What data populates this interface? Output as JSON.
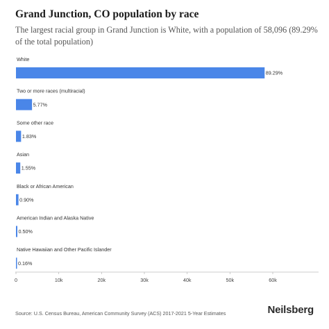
{
  "header": {
    "title": "Grand Junction, CO population by race",
    "subtitle": "The largest racial group in Grand Junction is White, with a population of 58,096 (89.29% of the total population)"
  },
  "footer": {
    "source": "Source: U.S. Census Bureau, American Community Survey (ACS) 2017-2021 5-Year Estimates",
    "brand": "Neilsberg"
  },
  "colors": {
    "bar": "#4a86e8",
    "axis": "#bdbdbd"
  },
  "chart_data": {
    "type": "bar",
    "orientation": "horizontal",
    "categories": [
      "White",
      "Two or more races (multiracial)",
      "Some other race",
      "Asian",
      "Black or African American",
      "American Indian and Alaska Native",
      "Native Hawaiian and Other Pacific Islander"
    ],
    "values": [
      58096,
      3754,
      1191,
      1008,
      586,
      325,
      104
    ],
    "data_labels": [
      "89.29%",
      "5.77%",
      "1.83%",
      "1.55%",
      "0.90%",
      "0.50%",
      "0.16%"
    ],
    "xlim": [
      0,
      65000
    ],
    "xticks": [
      0,
      10000,
      20000,
      30000,
      40000,
      50000,
      60000
    ],
    "xtick_labels": [
      "0",
      "10k",
      "20k",
      "30k",
      "40k",
      "50k",
      "60k"
    ],
    "grid": false
  }
}
